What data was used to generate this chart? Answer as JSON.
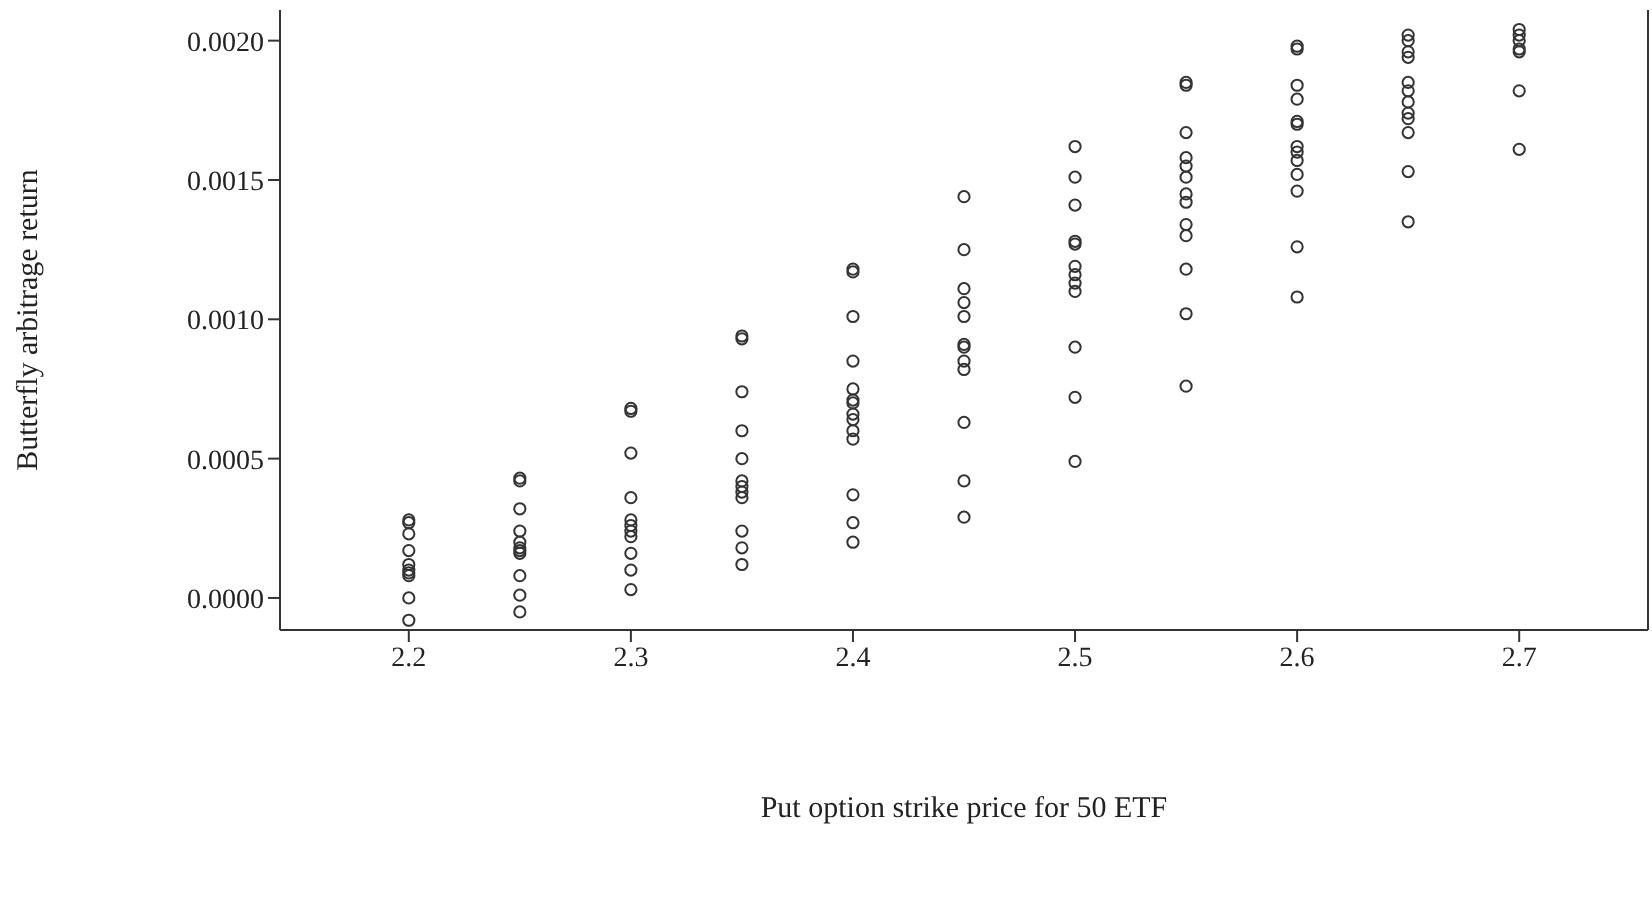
{
  "chart_data": {
    "type": "scatter",
    "xlabel": "Put option strike price for 50 ETF",
    "ylabel": "Butterfly arbitrage return",
    "xlim": [
      2.142,
      2.758
    ],
    "xticks": [
      2.2,
      2.3,
      2.4,
      2.5,
      2.6,
      2.7
    ],
    "ylim": [
      -0.000115,
      0.00211
    ],
    "yticks": [
      {
        "value": 0,
        "label": "0.0000"
      },
      {
        "value": 0.0005,
        "label": "0.0005"
      },
      {
        "value": 0.001,
        "label": "0.0010"
      },
      {
        "value": 0.0015,
        "label": "0.0015"
      },
      {
        "value": 0.002,
        "label": "0.0020"
      }
    ],
    "grid": false,
    "legend": false,
    "marker": "circle",
    "series": [
      {
        "color": "#333333",
        "x": [
          2.2,
          2.2,
          2.2,
          2.2,
          2.2,
          2.2,
          2.2,
          2.2,
          2.2,
          2.2,
          2.25,
          2.25,
          2.25,
          2.25,
          2.25,
          2.25,
          2.25,
          2.25,
          2.25,
          2.25,
          2.25,
          2.3,
          2.3,
          2.3,
          2.3,
          2.3,
          2.3,
          2.3,
          2.3,
          2.3,
          2.3,
          2.3,
          2.35,
          2.35,
          2.35,
          2.35,
          2.35,
          2.35,
          2.35,
          2.35,
          2.35,
          2.35,
          2.35,
          2.35,
          2.4,
          2.4,
          2.4,
          2.4,
          2.4,
          2.4,
          2.4,
          2.4,
          2.4,
          2.4,
          2.4,
          2.4,
          2.4,
          2.4,
          2.45,
          2.45,
          2.45,
          2.45,
          2.45,
          2.45,
          2.45,
          2.45,
          2.45,
          2.45,
          2.45,
          2.45,
          2.5,
          2.5,
          2.5,
          2.5,
          2.5,
          2.5,
          2.5,
          2.5,
          2.5,
          2.5,
          2.5,
          2.5,
          2.55,
          2.55,
          2.55,
          2.55,
          2.55,
          2.55,
          2.55,
          2.55,
          2.55,
          2.55,
          2.55,
          2.55,
          2.55,
          2.6,
          2.6,
          2.6,
          2.6,
          2.6,
          2.6,
          2.6,
          2.6,
          2.6,
          2.6,
          2.6,
          2.6,
          2.6,
          2.65,
          2.65,
          2.65,
          2.65,
          2.65,
          2.65,
          2.65,
          2.65,
          2.65,
          2.65,
          2.65,
          2.65,
          2.7,
          2.7,
          2.7,
          2.7,
          2.7,
          2.7,
          2.7
        ],
        "values": [
          0.00028,
          0.00027,
          0.00023,
          0.00017,
          0.00012,
          0.0001,
          9e-05,
          8e-05,
          0.0,
          -8e-05,
          0.00043,
          0.00042,
          0.00032,
          0.00024,
          0.0002,
          0.00018,
          0.00017,
          0.00016,
          8e-05,
          1e-05,
          -5e-05,
          0.00068,
          0.00067,
          0.00052,
          0.00036,
          0.00028,
          0.00026,
          0.00024,
          0.00022,
          0.00016,
          0.0001,
          3e-05,
          0.00094,
          0.00093,
          0.00074,
          0.0006,
          0.0005,
          0.00042,
          0.0004,
          0.00038,
          0.00036,
          0.00024,
          0.00018,
          0.00012,
          0.00118,
          0.00117,
          0.00101,
          0.00085,
          0.00075,
          0.00071,
          0.0007,
          0.00066,
          0.00064,
          0.0006,
          0.00057,
          0.00037,
          0.00027,
          0.0002,
          0.00144,
          0.00125,
          0.00111,
          0.00106,
          0.00101,
          0.00091,
          0.0009,
          0.00085,
          0.00082,
          0.00063,
          0.00042,
          0.00029,
          0.00162,
          0.00151,
          0.00141,
          0.00128,
          0.00127,
          0.00119,
          0.00116,
          0.00113,
          0.0011,
          0.0009,
          0.00072,
          0.00049,
          0.00185,
          0.00184,
          0.00167,
          0.00158,
          0.00155,
          0.00151,
          0.00145,
          0.00142,
          0.00134,
          0.0013,
          0.00118,
          0.00102,
          0.00076,
          0.00198,
          0.00197,
          0.00184,
          0.00179,
          0.00171,
          0.0017,
          0.00162,
          0.0016,
          0.00157,
          0.00152,
          0.00146,
          0.00126,
          0.00108,
          0.00202,
          0.002,
          0.00196,
          0.00194,
          0.00185,
          0.00182,
          0.00178,
          0.00174,
          0.00172,
          0.00167,
          0.00153,
          0.00135,
          0.00204,
          0.00202,
          0.002,
          0.00197,
          0.00196,
          0.00182,
          0.00161
        ]
      }
    ]
  }
}
